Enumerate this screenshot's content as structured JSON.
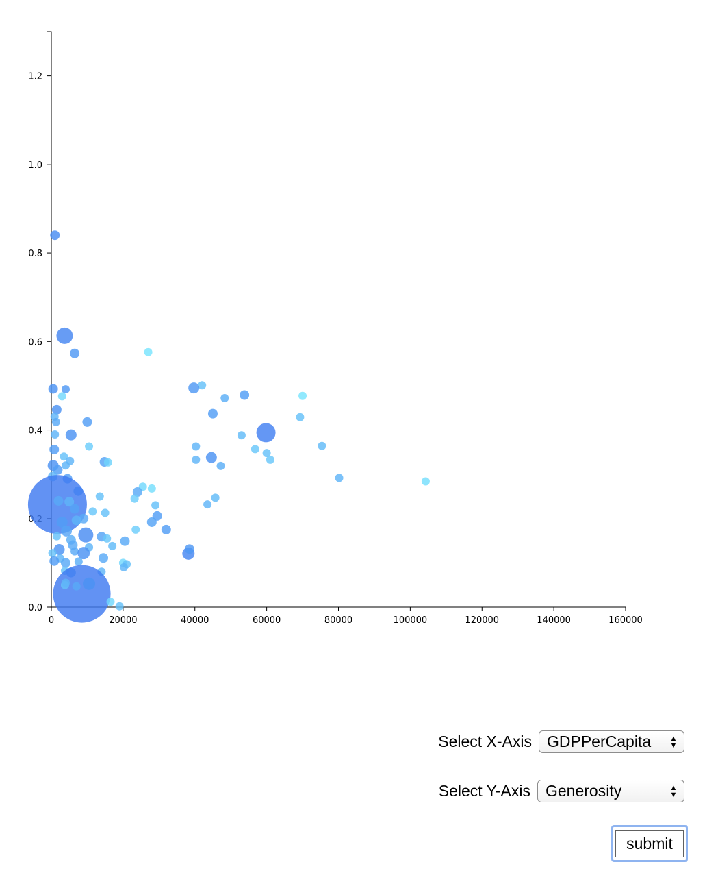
{
  "chart_data": {
    "type": "scatter",
    "xlabel": "",
    "ylabel": "",
    "xlim": [
      0,
      160000
    ],
    "ylim": [
      0,
      1.3
    ],
    "x_ticks": [
      "0",
      "20000",
      "40000",
      "60000",
      "80000",
      "100000",
      "120000",
      "140000",
      "160000"
    ],
    "y_ticks": [
      "0.0",
      "0.2",
      "0.4",
      "0.6",
      "0.8",
      "1.0",
      "1.2"
    ],
    "colors": {
      "dark": "#3f7af0",
      "light": "#7ff0ff"
    },
    "points": [
      [
        1000,
        0.84,
        7,
        0.15
      ],
      [
        3700,
        0.613,
        12,
        0.1
      ],
      [
        6500,
        0.573,
        7,
        0.25
      ],
      [
        27000,
        0.576,
        6,
        0.9
      ],
      [
        500,
        0.493,
        7,
        0.2
      ],
      [
        4000,
        0.492,
        6,
        0.25
      ],
      [
        3000,
        0.476,
        6,
        0.8
      ],
      [
        1500,
        0.446,
        7,
        0.2
      ],
      [
        900,
        0.43,
        6,
        0.5
      ],
      [
        1300,
        0.418,
        6,
        0.4
      ],
      [
        10000,
        0.418,
        7,
        0.3
      ],
      [
        1000,
        0.39,
        6,
        0.5
      ],
      [
        5500,
        0.389,
        8,
        0.2
      ],
      [
        10500,
        0.363,
        6,
        0.7
      ],
      [
        800,
        0.356,
        7,
        0.3
      ],
      [
        3500,
        0.34,
        6,
        0.6
      ],
      [
        5200,
        0.33,
        6,
        0.5
      ],
      [
        4000,
        0.32,
        6,
        0.5
      ],
      [
        14800,
        0.328,
        7,
        0.35
      ],
      [
        15800,
        0.327,
        6,
        0.75
      ],
      [
        500,
        0.32,
        8,
        0.2
      ],
      [
        1800,
        0.31,
        7,
        0.3
      ],
      [
        400,
        0.295,
        7,
        0.5
      ],
      [
        4500,
        0.29,
        7,
        0.3
      ],
      [
        25500,
        0.272,
        6,
        0.8
      ],
      [
        28000,
        0.268,
        6,
        0.85
      ],
      [
        24000,
        0.26,
        7,
        0.4
      ],
      [
        7500,
        0.262,
        7,
        0.4
      ],
      [
        13500,
        0.25,
        6,
        0.6
      ],
      [
        23200,
        0.245,
        6,
        0.7
      ],
      [
        1700,
        0.232,
        43,
        0.0
      ],
      [
        5000,
        0.238,
        7,
        0.5
      ],
      [
        2000,
        0.24,
        7,
        0.4
      ],
      [
        6500,
        0.222,
        7,
        0.35
      ],
      [
        29000,
        0.23,
        6,
        0.6
      ],
      [
        11500,
        0.216,
        6,
        0.65
      ],
      [
        15000,
        0.213,
        6,
        0.6
      ],
      [
        29500,
        0.206,
        7,
        0.3
      ],
      [
        9000,
        0.2,
        7,
        0.4
      ],
      [
        3000,
        0.192,
        8,
        0.3
      ],
      [
        7000,
        0.196,
        7,
        0.5
      ],
      [
        28000,
        0.192,
        7,
        0.35
      ],
      [
        32000,
        0.175,
        7,
        0.3
      ],
      [
        23500,
        0.175,
        6,
        0.7
      ],
      [
        9600,
        0.163,
        11,
        0.15
      ],
      [
        4200,
        0.172,
        8,
        0.35
      ],
      [
        14000,
        0.159,
        7,
        0.35
      ],
      [
        15500,
        0.155,
        6,
        0.65
      ],
      [
        1500,
        0.16,
        6,
        0.6
      ],
      [
        5500,
        0.152,
        7,
        0.45
      ],
      [
        6000,
        0.14,
        7,
        0.4
      ],
      [
        17000,
        0.138,
        6,
        0.55
      ],
      [
        20500,
        0.149,
        7,
        0.4
      ],
      [
        10500,
        0.135,
        6,
        0.5
      ],
      [
        2200,
        0.13,
        8,
        0.2
      ],
      [
        6500,
        0.126,
        6,
        0.4
      ],
      [
        9000,
        0.122,
        9,
        0.2
      ],
      [
        38200,
        0.121,
        9,
        0.1
      ],
      [
        38500,
        0.131,
        7,
        0.25
      ],
      [
        300,
        0.122,
        6,
        0.6
      ],
      [
        14500,
        0.111,
        7,
        0.4
      ],
      [
        2500,
        0.11,
        6,
        0.5
      ],
      [
        800,
        0.104,
        7,
        0.3
      ],
      [
        7600,
        0.103,
        6,
        0.45
      ],
      [
        20000,
        0.1,
        6,
        0.8
      ],
      [
        21000,
        0.097,
        6,
        0.6
      ],
      [
        4000,
        0.1,
        7,
        0.4
      ],
      [
        20200,
        0.09,
        6,
        0.5
      ],
      [
        14000,
        0.08,
        6,
        0.5
      ],
      [
        3800,
        0.082,
        6,
        0.6
      ],
      [
        5500,
        0.078,
        7,
        0.4
      ],
      [
        8500,
        0.03,
        42,
        0.0
      ],
      [
        10500,
        0.053,
        9,
        0.2
      ],
      [
        3800,
        0.05,
        6,
        0.6
      ],
      [
        7000,
        0.047,
        6,
        0.4
      ],
      [
        4000,
        0.055,
        6,
        0.5
      ],
      [
        16500,
        0.012,
        6,
        0.8
      ],
      [
        19000,
        0.002,
        6,
        0.6
      ],
      [
        42000,
        0.501,
        6,
        0.6
      ],
      [
        39700,
        0.495,
        8,
        0.25
      ],
      [
        48300,
        0.472,
        6,
        0.45
      ],
      [
        53800,
        0.479,
        7,
        0.3
      ],
      [
        70000,
        0.477,
        6,
        0.9
      ],
      [
        45000,
        0.437,
        7,
        0.3
      ],
      [
        69300,
        0.429,
        6,
        0.6
      ],
      [
        59800,
        0.394,
        14,
        0.05
      ],
      [
        53000,
        0.388,
        6,
        0.55
      ],
      [
        40300,
        0.363,
        6,
        0.5
      ],
      [
        56800,
        0.357,
        6,
        0.65
      ],
      [
        75400,
        0.364,
        6,
        0.55
      ],
      [
        60000,
        0.348,
        6,
        0.6
      ],
      [
        44600,
        0.338,
        8,
        0.2
      ],
      [
        40300,
        0.333,
        6,
        0.5
      ],
      [
        61000,
        0.333,
        6,
        0.65
      ],
      [
        47200,
        0.319,
        6,
        0.45
      ],
      [
        80200,
        0.292,
        6,
        0.5
      ],
      [
        104300,
        0.284,
        6,
        0.85
      ],
      [
        43500,
        0.232,
        6,
        0.5
      ],
      [
        45700,
        0.247,
        6,
        0.55
      ]
    ]
  },
  "controls": {
    "x_label": "Select X-Axis",
    "x_value": "GDPPerCapita",
    "y_label": "Select Y-Axis",
    "y_value": "Generosity",
    "submit_label": "submit"
  }
}
